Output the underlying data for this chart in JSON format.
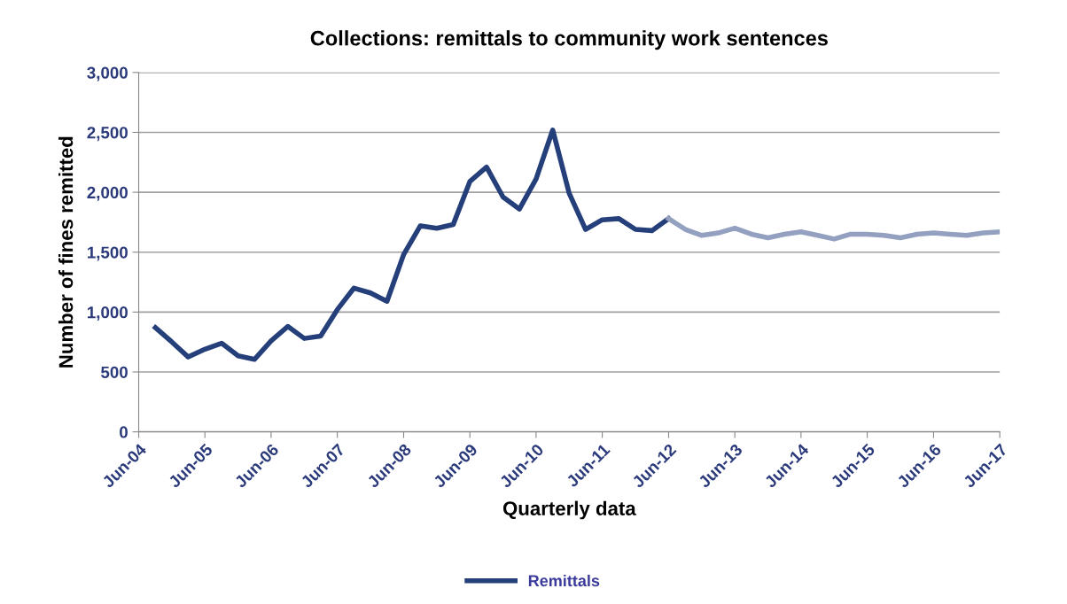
{
  "chart_data": {
    "type": "line",
    "title": "Collections: remittals to community work sentences",
    "xlabel": "Quarterly data",
    "ylabel": "Number of fines remitted",
    "series": [
      {
        "name": "Remittals",
        "color": "#253f7a",
        "x": [
          "2004-09",
          "2004-12",
          "2005-03",
          "2005-06",
          "2005-09",
          "2005-12",
          "2006-03",
          "2006-06",
          "2006-09",
          "2006-12",
          "2007-03",
          "2007-06",
          "2007-09",
          "2007-12",
          "2008-03",
          "2008-06",
          "2008-09",
          "2008-12",
          "2009-03",
          "2009-06",
          "2009-09",
          "2009-12",
          "2010-03",
          "2010-06",
          "2010-09",
          "2010-12",
          "2011-03",
          "2011-06",
          "2011-09",
          "2011-12",
          "2012-03",
          "2012-06"
        ],
        "values": [
          870,
          750,
          625,
          690,
          740,
          635,
          605,
          760,
          880,
          780,
          800,
          1020,
          1200,
          1160,
          1090,
          1480,
          1720,
          1700,
          1730,
          2090,
          2210,
          1960,
          1860,
          2110,
          2520,
          1990,
          1690,
          1770,
          1780,
          1690,
          1680,
          1780
        ]
      },
      {
        "color": "#94a0c0",
        "x": [
          "2012-06",
          "2012-09",
          "2012-12",
          "2013-03",
          "2013-06",
          "2013-09",
          "2013-12",
          "2014-03",
          "2014-06",
          "2014-09",
          "2014-12",
          "2015-03",
          "2015-06",
          "2015-09",
          "2015-12",
          "2016-03",
          "2016-06",
          "2016-09",
          "2016-12",
          "2017-03",
          "2017-06"
        ],
        "values": [
          1780,
          1690,
          1640,
          1660,
          1700,
          1650,
          1620,
          1650,
          1670,
          1640,
          1610,
          1650,
          1650,
          1640,
          1620,
          1650,
          1660,
          1650,
          1640,
          1660,
          1670
        ]
      }
    ],
    "xlim": [
      "2004-06",
      "2017-06"
    ],
    "xticks": [
      {
        "value": "2004-06",
        "label": "Jun-04"
      },
      {
        "value": "2005-06",
        "label": "Jun-05"
      },
      {
        "value": "2006-06",
        "label": "Jun-06"
      },
      {
        "value": "2007-06",
        "label": "Jun-07"
      },
      {
        "value": "2008-06",
        "label": "Jun-08"
      },
      {
        "value": "2009-06",
        "label": "Jun-09"
      },
      {
        "value": "2010-06",
        "label": "Jun-10"
      },
      {
        "value": "2011-06",
        "label": "Jun-11"
      },
      {
        "value": "2012-06",
        "label": "Jun-12"
      },
      {
        "value": "2013-06",
        "label": "Jun-13"
      },
      {
        "value": "2014-06",
        "label": "Jun-14"
      },
      {
        "value": "2015-06",
        "label": "Jun-15"
      },
      {
        "value": "2016-06",
        "label": "Jun-16"
      },
      {
        "value": "2017-06",
        "label": "Jun-17"
      }
    ],
    "ylim": [
      0,
      3000
    ],
    "yticks": [
      0,
      {
        "value": 500,
        "label": "500"
      },
      {
        "value": 1000,
        "label": "1,000"
      },
      {
        "value": 1500,
        "label": "1,500"
      },
      {
        "value": 2000,
        "label": "2,000"
      },
      {
        "value": 2500,
        "label": "2,500"
      },
      {
        "value": 3000,
        "label": "3,000"
      }
    ],
    "grid": "y",
    "legend": "bottom",
    "marker": "none",
    "line_style": "solid"
  }
}
